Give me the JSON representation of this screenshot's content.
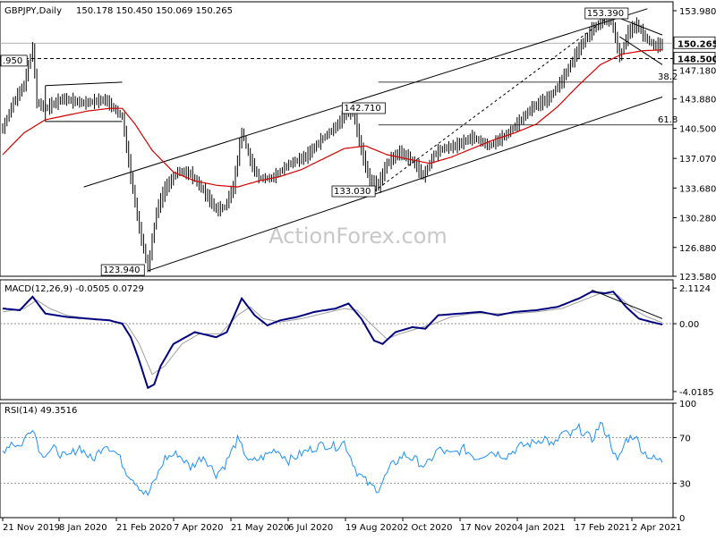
{
  "header": {
    "symbol": "GBPJPY,Daily",
    "ohlc": "150.178 150.450 150.069 150.265"
  },
  "watermark": "ActionForex.com",
  "colors": {
    "price": "#000000",
    "ma": "#d40000",
    "macd": "#000080",
    "signal": "#a0a0a0",
    "rsi": "#1e90ff",
    "grid": "#808080"
  },
  "chart_data": [
    {
      "type": "line",
      "panel": "price",
      "ylim": [
        123.58,
        155.0
      ],
      "yticks": [
        "153.980",
        "150.265",
        "148.500",
        "147.180",
        "143.880",
        "140.500",
        "137.070",
        "133.680",
        "130.280",
        "126.880",
        "123.580"
      ],
      "yticks_values": [
        153.98,
        150.265,
        148.5,
        147.18,
        143.88,
        140.5,
        137.07,
        133.68,
        130.28,
        126.88,
        123.58
      ],
      "current_price": {
        "label": "150.265",
        "value": 150.265
      },
      "level_line": {
        "label": "148.500",
        "value": 148.5
      },
      "xlabels": [
        "21 Nov 2019",
        "8 Jan 2020",
        "21 Feb 2020",
        "7 Apr 2020",
        "21 May 2020",
        "6 Jul 2020",
        "19 Aug 2020",
        "2 Oct 2020",
        "17 Nov 2020",
        "4 Jan 2021",
        "17 Feb 2021",
        "2 Apr 2021"
      ],
      "annotations": [
        {
          "label": ".950",
          "x": 0,
          "y": 147.95
        },
        {
          "label": "123.940",
          "x": 68,
          "y": 123.94
        },
        {
          "label": "142.710",
          "x": 162,
          "y": 142.71
        },
        {
          "label": "133.030",
          "x": 174,
          "y": 133.03
        },
        {
          "label": "153.390",
          "x": 285,
          "y": 153.39
        }
      ],
      "fib_levels": [
        {
          "label": "38.2",
          "value": 145.8
        },
        {
          "label": "61.8",
          "value": 140.9
        }
      ],
      "price_keypoints": [
        [
          0,
          140.5
        ],
        [
          5,
          143.5
        ],
        [
          10,
          145.5
        ],
        [
          14,
          149.8
        ],
        [
          16,
          143.5
        ],
        [
          20,
          142.8
        ],
        [
          28,
          143.9
        ],
        [
          38,
          143.4
        ],
        [
          48,
          143.8
        ],
        [
          56,
          141.8
        ],
        [
          60,
          135.0
        ],
        [
          64,
          129.0
        ],
        [
          68,
          124.5
        ],
        [
          72,
          131.0
        ],
        [
          76,
          133.6
        ],
        [
          82,
          135.6
        ],
        [
          88,
          135.3
        ],
        [
          94,
          133.4
        ],
        [
          100,
          131.2
        ],
        [
          104,
          131.5
        ],
        [
          108,
          133.8
        ],
        [
          112,
          140.2
        ],
        [
          116,
          136.8
        ],
        [
          120,
          134.8
        ],
        [
          126,
          134.8
        ],
        [
          134,
          136.4
        ],
        [
          142,
          137.3
        ],
        [
          150,
          139.4
        ],
        [
          156,
          140.7
        ],
        [
          160,
          142.0
        ],
        [
          164,
          142.7
        ],
        [
          168,
          138.0
        ],
        [
          172,
          134.5
        ],
        [
          176,
          134.0
        ],
        [
          180,
          136.5
        ],
        [
          186,
          137.8
        ],
        [
          192,
          136.8
        ],
        [
          197,
          135.0
        ],
        [
          202,
          137.5
        ],
        [
          206,
          138.2
        ],
        [
          212,
          138.5
        ],
        [
          220,
          139.5
        ],
        [
          228,
          138.5
        ],
        [
          236,
          139.8
        ],
        [
          242,
          141.3
        ],
        [
          248,
          142.9
        ],
        [
          256,
          144.0
        ],
        [
          262,
          146.0
        ],
        [
          268,
          148.8
        ],
        [
          272,
          150.4
        ],
        [
          276,
          151.8
        ],
        [
          280,
          152.6
        ],
        [
          285,
          153.2
        ],
        [
          289,
          148.6
        ],
        [
          293,
          151.5
        ],
        [
          297,
          152.4
        ],
        [
          301,
          150.9
        ],
        [
          305,
          150.0
        ],
        [
          309,
          150.1
        ]
      ],
      "ma_keypoints": [
        [
          0,
          137.5
        ],
        [
          10,
          140.0
        ],
        [
          20,
          141.5
        ],
        [
          30,
          142.0
        ],
        [
          40,
          142.5
        ],
        [
          50,
          142.8
        ],
        [
          56,
          142.8
        ],
        [
          62,
          141.0
        ],
        [
          70,
          138.0
        ],
        [
          80,
          135.5
        ],
        [
          90,
          134.5
        ],
        [
          100,
          134.0
        ],
        [
          110,
          133.8
        ],
        [
          120,
          134.5
        ],
        [
          130,
          135.0
        ],
        [
          140,
          135.8
        ],
        [
          150,
          137.0
        ],
        [
          160,
          138.2
        ],
        [
          170,
          138.5
        ],
        [
          180,
          137.5
        ],
        [
          190,
          137.0
        ],
        [
          200,
          136.5
        ],
        [
          210,
          137.2
        ],
        [
          220,
          138.2
        ],
        [
          230,
          139.2
        ],
        [
          240,
          140.0
        ],
        [
          250,
          141.0
        ],
        [
          260,
          143.0
        ],
        [
          270,
          145.5
        ],
        [
          280,
          147.8
        ],
        [
          290,
          149.0
        ],
        [
          300,
          149.4
        ],
        [
          309,
          149.5
        ]
      ],
      "channel_upper": [
        [
          38,
          133.8
        ],
        [
          302,
          154.2
        ]
      ],
      "channel_lower": [
        [
          68,
          124.2
        ],
        [
          309,
          144.1
        ]
      ],
      "rect_box": {
        "x0": 20,
        "x1": 56,
        "y_top": 145.4,
        "y_bottom": 141.3
      }
    },
    {
      "type": "line",
      "panel": "macd",
      "title": "MACD(12,26,9) -0.0505 0.0729",
      "ylim": [
        -4.5,
        2.6
      ],
      "yticks": [
        "2.1124",
        "0.00",
        "-4.0185"
      ],
      "yticks_values": [
        2.1124,
        0.0,
        -4.0185
      ],
      "macd_keypoints": [
        [
          0,
          0.9
        ],
        [
          8,
          0.8
        ],
        [
          14,
          1.6
        ],
        [
          20,
          0.6
        ],
        [
          30,
          0.4
        ],
        [
          40,
          0.3
        ],
        [
          50,
          0.2
        ],
        [
          56,
          0.0
        ],
        [
          60,
          -0.8
        ],
        [
          64,
          -2.2
        ],
        [
          68,
          -3.8
        ],
        [
          71,
          -3.6
        ],
        [
          74,
          -2.5
        ],
        [
          80,
          -1.2
        ],
        [
          90,
          -0.5
        ],
        [
          100,
          -0.8
        ],
        [
          105,
          -0.5
        ],
        [
          112,
          1.5
        ],
        [
          118,
          0.5
        ],
        [
          124,
          -0.1
        ],
        [
          130,
          0.2
        ],
        [
          138,
          0.4
        ],
        [
          146,
          0.7
        ],
        [
          156,
          0.9
        ],
        [
          162,
          1.2
        ],
        [
          168,
          0.3
        ],
        [
          174,
          -1.0
        ],
        [
          178,
          -1.2
        ],
        [
          184,
          -0.5
        ],
        [
          192,
          -0.2
        ],
        [
          198,
          -0.3
        ],
        [
          204,
          0.5
        ],
        [
          214,
          0.6
        ],
        [
          224,
          0.7
        ],
        [
          232,
          0.5
        ],
        [
          240,
          0.7
        ],
        [
          250,
          0.8
        ],
        [
          260,
          1.0
        ],
        [
          270,
          1.5
        ],
        [
          276,
          1.9
        ],
        [
          282,
          1.8
        ],
        [
          286,
          1.9
        ],
        [
          292,
          1.0
        ],
        [
          298,
          0.3
        ],
        [
          304,
          0.1
        ],
        [
          309,
          -0.05
        ]
      ],
      "signal_keypoints": [
        [
          0,
          0.7
        ],
        [
          10,
          0.9
        ],
        [
          16,
          1.4
        ],
        [
          22,
          0.9
        ],
        [
          30,
          0.5
        ],
        [
          40,
          0.3
        ],
        [
          50,
          0.2
        ],
        [
          58,
          0.0
        ],
        [
          64,
          -1.2
        ],
        [
          70,
          -3.0
        ],
        [
          76,
          -2.5
        ],
        [
          84,
          -1.2
        ],
        [
          92,
          -0.6
        ],
        [
          102,
          -0.6
        ],
        [
          110,
          0.5
        ],
        [
          116,
          1.0
        ],
        [
          122,
          0.3
        ],
        [
          130,
          0.1
        ],
        [
          140,
          0.3
        ],
        [
          150,
          0.6
        ],
        [
          160,
          0.9
        ],
        [
          166,
          0.8
        ],
        [
          174,
          -0.2
        ],
        [
          180,
          -0.9
        ],
        [
          186,
          -0.6
        ],
        [
          194,
          -0.3
        ],
        [
          202,
          0.0
        ],
        [
          210,
          0.4
        ],
        [
          220,
          0.6
        ],
        [
          230,
          0.6
        ],
        [
          240,
          0.6
        ],
        [
          250,
          0.7
        ],
        [
          262,
          0.9
        ],
        [
          272,
          1.4
        ],
        [
          280,
          1.8
        ],
        [
          288,
          1.7
        ],
        [
          296,
          0.8
        ],
        [
          302,
          0.4
        ],
        [
          309,
          0.07
        ]
      ],
      "trendline": [
        [
          276,
          2.0
        ],
        [
          309,
          0.3
        ]
      ]
    },
    {
      "type": "line",
      "panel": "rsi",
      "title": "RSI(14) 49.3516",
      "ylim": [
        0,
        100
      ],
      "yticks": [
        "100",
        "70",
        "30",
        "0"
      ],
      "yticks_values": [
        100,
        70,
        30,
        0
      ],
      "rsi_keypoints": [
        [
          0,
          58
        ],
        [
          4,
          66
        ],
        [
          8,
          62
        ],
        [
          14,
          80
        ],
        [
          18,
          55
        ],
        [
          24,
          60
        ],
        [
          30,
          52
        ],
        [
          36,
          62
        ],
        [
          42,
          50
        ],
        [
          48,
          65
        ],
        [
          54,
          55
        ],
        [
          58,
          40
        ],
        [
          62,
          32
        ],
        [
          66,
          22
        ],
        [
          68,
          20
        ],
        [
          72,
          35
        ],
        [
          76,
          52
        ],
        [
          82,
          56
        ],
        [
          88,
          44
        ],
        [
          94,
          54
        ],
        [
          100,
          38
        ],
        [
          104,
          46
        ],
        [
          110,
          68
        ],
        [
          116,
          48
        ],
        [
          122,
          53
        ],
        [
          128,
          60
        ],
        [
          134,
          50
        ],
        [
          142,
          58
        ],
        [
          150,
          64
        ],
        [
          156,
          62
        ],
        [
          160,
          66
        ],
        [
          166,
          40
        ],
        [
          172,
          28
        ],
        [
          176,
          25
        ],
        [
          182,
          45
        ],
        [
          188,
          55
        ],
        [
          194,
          50
        ],
        [
          198,
          44
        ],
        [
          204,
          60
        ],
        [
          210,
          55
        ],
        [
          216,
          60
        ],
        [
          222,
          52
        ],
        [
          228,
          58
        ],
        [
          236,
          54
        ],
        [
          242,
          62
        ],
        [
          248,
          65
        ],
        [
          254,
          70
        ],
        [
          258,
          62
        ],
        [
          262,
          74
        ],
        [
          266,
          72
        ],
        [
          270,
          78
        ],
        [
          276,
          68
        ],
        [
          280,
          82
        ],
        [
          284,
          70
        ],
        [
          288,
          48
        ],
        [
          292,
          68
        ],
        [
          296,
          72
        ],
        [
          300,
          58
        ],
        [
          304,
          52
        ],
        [
          309,
          49.35
        ]
      ]
    }
  ]
}
